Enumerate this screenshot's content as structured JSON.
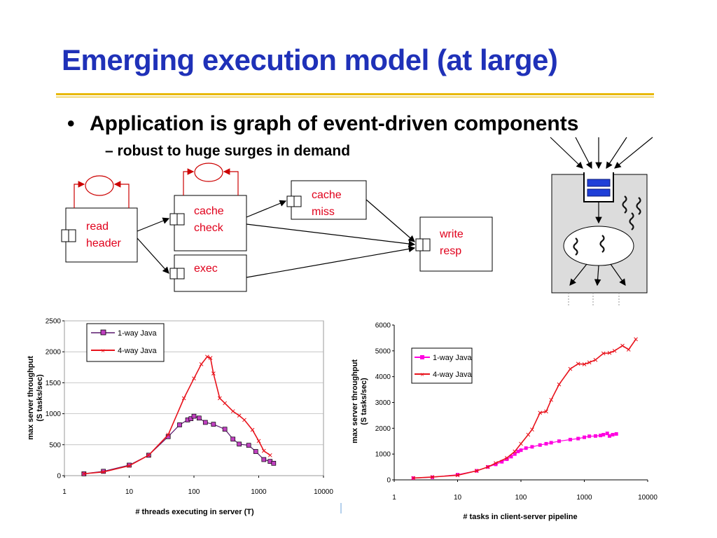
{
  "slide": {
    "title": "Emerging execution model (at large)",
    "bullet": "Application is graph of event-driven components",
    "bullet_marker": "•",
    "subbullet": "robust to huge surges in demand",
    "subbullet_marker": "–"
  },
  "diagram": {
    "nodes": {
      "read_header": [
        "read",
        "header"
      ],
      "cache_check": [
        "cache",
        "check"
      ],
      "cache_miss": [
        "cache",
        "miss"
      ],
      "exec": [
        "exec"
      ],
      "write_resp": [
        "write",
        "resp"
      ]
    },
    "node_text_color": "#e0001b",
    "arrow_color": "#cc0000",
    "queue_color": "#1f3fd8"
  },
  "chart_data": [
    {
      "type": "line",
      "xscale": "log",
      "xlabel": "# threads executing in server (T)",
      "ylabel": "max server throughput\n(S tasks/sec)",
      "xlim": [
        1,
        10000
      ],
      "ylim": [
        0,
        2500
      ],
      "xticks": [
        "1",
        "10",
        "100",
        "1000",
        "10000"
      ],
      "yticks": [
        "0",
        "500",
        "1000",
        "1500",
        "2000",
        "2500"
      ],
      "grid": true,
      "legend": "top-left",
      "series": [
        {
          "name": "1-way Java",
          "color": "#5a1a6e",
          "marker": "square-purple",
          "x": [
            2,
            4,
            10,
            20,
            40,
            60,
            80,
            90,
            100,
            120,
            150,
            200,
            300,
            400,
            500,
            700,
            900,
            1200,
            1500,
            1700
          ],
          "y": [
            30,
            70,
            170,
            330,
            630,
            820,
            900,
            920,
            960,
            930,
            860,
            830,
            750,
            590,
            510,
            490,
            390,
            260,
            230,
            200
          ]
        },
        {
          "name": "4-way Java",
          "color": "#e8121b",
          "marker": "x",
          "x": [
            2,
            4,
            10,
            20,
            40,
            70,
            100,
            130,
            160,
            180,
            200,
            250,
            300,
            400,
            500,
            600,
            800,
            1000,
            1200,
            1500
          ],
          "y": [
            30,
            60,
            160,
            330,
            660,
            1250,
            1570,
            1800,
            1920,
            1900,
            1650,
            1250,
            1170,
            1040,
            970,
            900,
            740,
            560,
            400,
            330
          ]
        }
      ]
    },
    {
      "type": "line",
      "xscale": "log",
      "xlabel": "# tasks in client-server pipeline",
      "ylabel": "max server throughput\n(S tasks/sec)",
      "xlim": [
        1,
        10000
      ],
      "ylim": [
        0,
        6000
      ],
      "xticks": [
        "1",
        "10",
        "100",
        "1000",
        "10000"
      ],
      "yticks": [
        "0",
        "1000",
        "2000",
        "3000",
        "4000",
        "5000",
        "6000"
      ],
      "grid": false,
      "legend": "middle-left",
      "series": [
        {
          "name": "1-way Java",
          "color": "#ff00e0",
          "marker": "square-magenta",
          "x": [
            2,
            4,
            10,
            20,
            30,
            40,
            50,
            60,
            70,
            80,
            90,
            100,
            120,
            150,
            200,
            250,
            300,
            400,
            600,
            800,
            1000,
            1200,
            1500,
            1800,
            2000,
            2300,
            2500,
            2800,
            3200
          ],
          "y": [
            70,
            100,
            200,
            350,
            500,
            600,
            700,
            800,
            900,
            1000,
            1100,
            1150,
            1230,
            1280,
            1350,
            1400,
            1440,
            1500,
            1560,
            1600,
            1650,
            1690,
            1700,
            1720,
            1750,
            1800,
            1700,
            1750,
            1780
          ]
        },
        {
          "name": "4-way Java",
          "color": "#e8121b",
          "marker": "x",
          "x": [
            2,
            4,
            10,
            20,
            30,
            40,
            60,
            80,
            100,
            130,
            150,
            200,
            250,
            300,
            400,
            600,
            800,
            1000,
            1200,
            1500,
            2000,
            2500,
            3000,
            4000,
            5000,
            6500
          ],
          "y": [
            70,
            110,
            180,
            350,
            500,
            650,
            850,
            1100,
            1400,
            1750,
            1950,
            2600,
            2650,
            3100,
            3700,
            4300,
            4500,
            4480,
            4550,
            4650,
            4900,
            4920,
            5000,
            5200,
            5050,
            5450
          ]
        }
      ]
    }
  ]
}
